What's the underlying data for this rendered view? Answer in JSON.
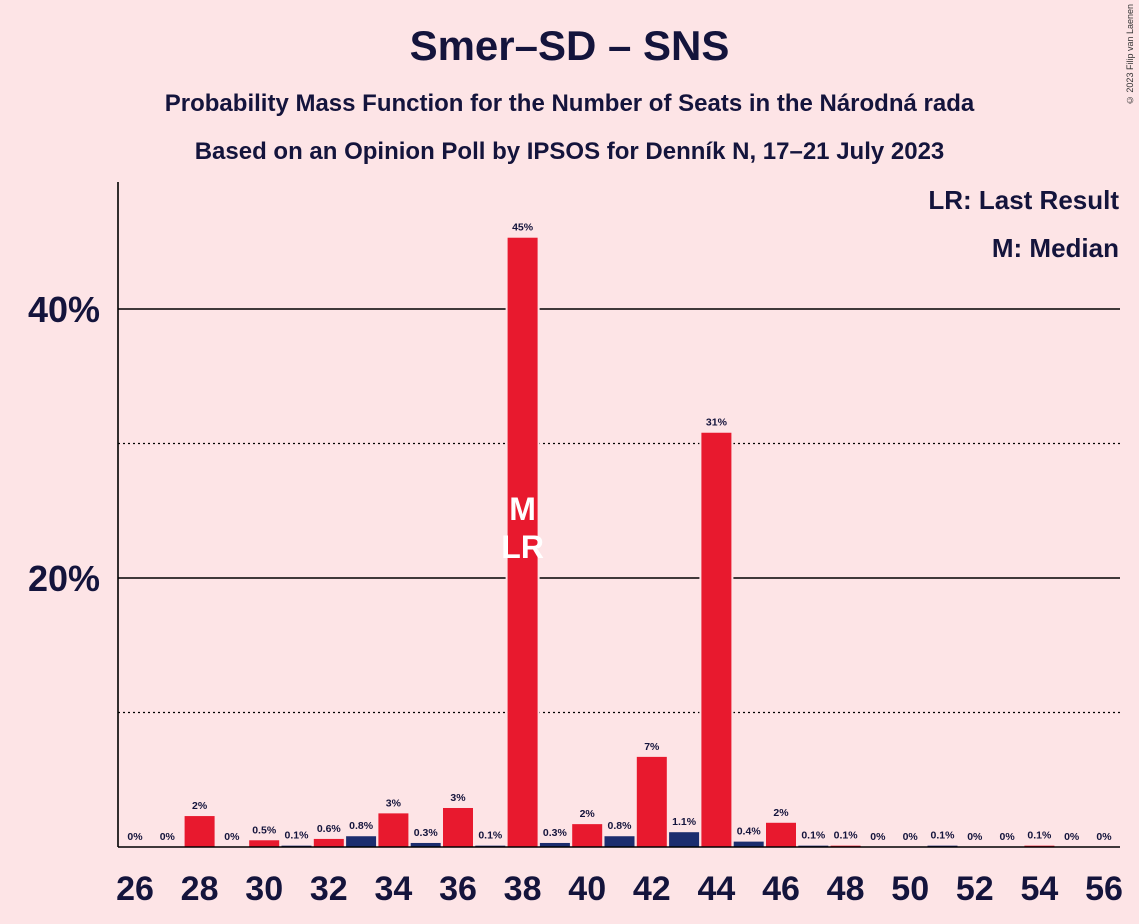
{
  "title": "Smer–SD – SNS",
  "subtitle1": "Probability Mass Function for the Number of Seats in the Národná rada",
  "subtitle2": "Based on an Opinion Poll by IPSOS for Denník N, 17–21 July 2023",
  "copyright": "© 2023 Filip van Laenen",
  "legend": {
    "last_result": "LR: Last Result",
    "median": "M: Median"
  },
  "colors": {
    "background": "#fde4e6",
    "bar_red": "#e8192e",
    "bar_blue": "#1c2d6e",
    "text": "#14143c"
  },
  "chart_data": {
    "type": "bar",
    "xlim": [
      26,
      56
    ],
    "ylim": [
      0,
      49
    ],
    "y_ticks_major": [
      {
        "value": 20,
        "label": "20%"
      },
      {
        "value": 40,
        "label": "40%"
      }
    ],
    "y_ticks_minor": [
      10,
      30
    ],
    "x_tick_labels": [
      "26",
      "28",
      "30",
      "32",
      "34",
      "36",
      "38",
      "40",
      "42",
      "44",
      "46",
      "48",
      "50",
      "52",
      "54",
      "56"
    ],
    "bars": [
      {
        "seats": 26,
        "value": 0,
        "label": "0%"
      },
      {
        "seats": 27,
        "value": 0,
        "label": "0%"
      },
      {
        "seats": 28,
        "value": 2.3,
        "label": "2%"
      },
      {
        "seats": 29,
        "value": 0,
        "label": "0%"
      },
      {
        "seats": 30,
        "value": 0.5,
        "label": "0.5%"
      },
      {
        "seats": 31,
        "value": 0.1,
        "label": "0.1%"
      },
      {
        "seats": 32,
        "value": 0.6,
        "label": "0.6%"
      },
      {
        "seats": 33,
        "value": 0.8,
        "label": "0.8%"
      },
      {
        "seats": 34,
        "value": 2.5,
        "label": "3%"
      },
      {
        "seats": 35,
        "value": 0.3,
        "label": "0.3%"
      },
      {
        "seats": 36,
        "value": 2.9,
        "label": "3%"
      },
      {
        "seats": 37,
        "value": 0.1,
        "label": "0.1%"
      },
      {
        "seats": 38,
        "value": 45.3,
        "label": "45%"
      },
      {
        "seats": 39,
        "value": 0.3,
        "label": "0.3%"
      },
      {
        "seats": 40,
        "value": 1.7,
        "label": "2%"
      },
      {
        "seats": 41,
        "value": 0.8,
        "label": "0.8%"
      },
      {
        "seats": 42,
        "value": 6.7,
        "label": "7%"
      },
      {
        "seats": 43,
        "value": 1.1,
        "label": "1.1%"
      },
      {
        "seats": 44,
        "value": 30.8,
        "label": "31%"
      },
      {
        "seats": 45,
        "value": 0.4,
        "label": "0.4%"
      },
      {
        "seats": 46,
        "value": 1.8,
        "label": "2%"
      },
      {
        "seats": 47,
        "value": 0.1,
        "label": "0.1%"
      },
      {
        "seats": 48,
        "value": 0.1,
        "label": "0.1%"
      },
      {
        "seats": 49,
        "value": 0,
        "label": "0%"
      },
      {
        "seats": 50,
        "value": 0,
        "label": "0%"
      },
      {
        "seats": 51,
        "value": 0.1,
        "label": "0.1%"
      },
      {
        "seats": 52,
        "value": 0,
        "label": "0%"
      },
      {
        "seats": 53,
        "value": 0,
        "label": "0%"
      },
      {
        "seats": 54,
        "value": 0.1,
        "label": "0.1%"
      },
      {
        "seats": 55,
        "value": 0,
        "label": "0%"
      },
      {
        "seats": 56,
        "value": 0,
        "label": "0%"
      }
    ],
    "median_seats": 38,
    "median_marker": "M",
    "last_result_seats": 38,
    "last_result_marker": "LR"
  }
}
